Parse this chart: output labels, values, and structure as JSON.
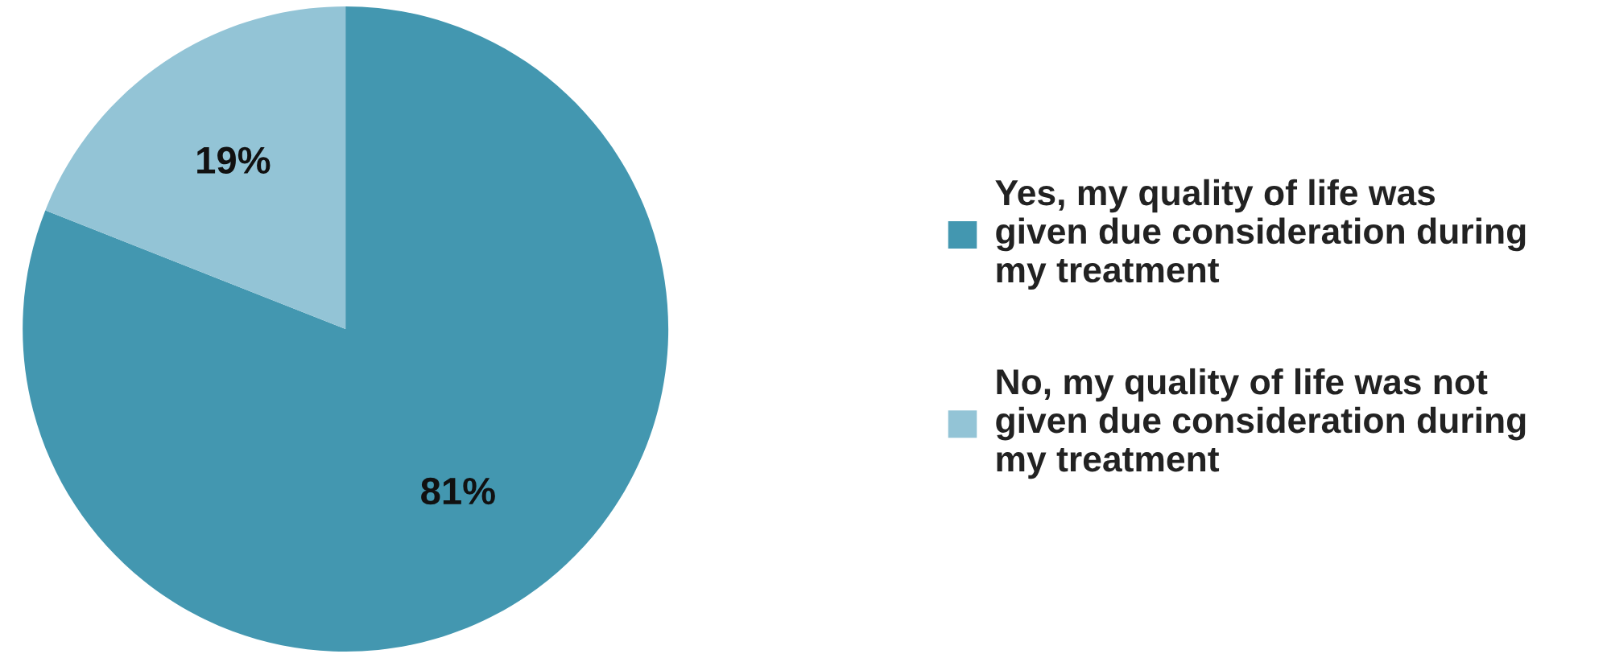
{
  "chart_data": {
    "type": "pie",
    "categories": [
      "Yes, my quality of life was\ngiven due consideration during\nmy treatment",
      "No, my quality of life was not\ngiven due consideration during\nmy treatment"
    ],
    "values": [
      81,
      19
    ],
    "colors": [
      "#4397b0",
      "#93c4d6"
    ],
    "value_labels": [
      "81%",
      "19%"
    ],
    "legend": "right"
  }
}
